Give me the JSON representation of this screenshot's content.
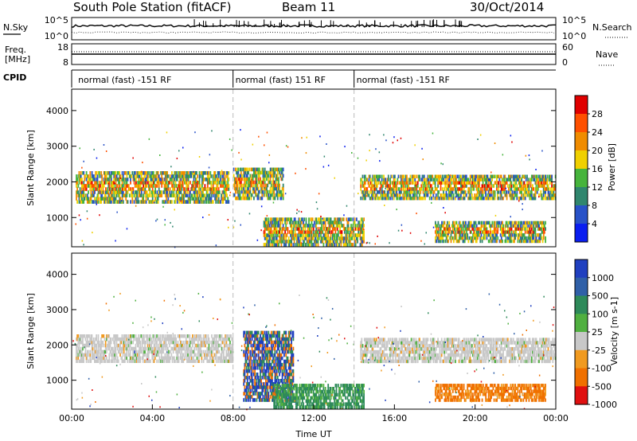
{
  "header": {
    "title": "South Pole Station (fitACF)",
    "beam": "Beam 11",
    "date": "30/Oct/2014"
  },
  "strip_labels": {
    "nsky": "N.Sky",
    "nsearch": "N.Search",
    "freq": "Freq.",
    "freq_unit": "[MHz]",
    "nave": "Nave",
    "cpid": "CPID",
    "nsky_ticks": [
      "10^5",
      "10^0"
    ],
    "nsearch_ticks": [
      "10^5",
      "10^0"
    ],
    "freq_ticks": [
      "18",
      "8"
    ],
    "nave_ticks": [
      "60",
      "0"
    ]
  },
  "cpid_segments": [
    {
      "start": 0.2,
      "end": 8.0,
      "label": "normal (fast) -151 RF"
    },
    {
      "start": 8.0,
      "end": 14.0,
      "label": "normal (fast) 151 RF"
    },
    {
      "start": 14.0,
      "end": 24.0,
      "label": "normal (fast) -151 RF"
    }
  ],
  "chart_data": [
    {
      "type": "heatmap",
      "name": "power",
      "ylabel": "Slant Range [km]",
      "ylim": [
        180,
        4600
      ],
      "yticks": [
        "1000",
        "2000",
        "3000",
        "4000"
      ],
      "yticks_values": [
        1000,
        2000,
        3000,
        4000
      ],
      "xlim": [
        0,
        24
      ],
      "colorbar": {
        "label": "Power [dB]",
        "ticks": [
          "4",
          "8",
          "12",
          "16",
          "20",
          "24",
          "28"
        ],
        "colors": [
          "#0a1ef0",
          "#2852c8",
          "#30866e",
          "#46b43c",
          "#f0d000",
          "#f08c00",
          "#ff5000",
          "#e00000"
        ]
      },
      "bands": [
        {
          "range_km": [
            1400,
            2300
          ],
          "hours": [
            0.2,
            7.8
          ],
          "level": "mixed 4-28 dB"
        },
        {
          "range_km": [
            1500,
            2400
          ],
          "hours": [
            8.0,
            10.5
          ],
          "level": "mixed 4-28 dB"
        },
        {
          "range_km": [
            200,
            1000
          ],
          "hours": [
            9.5,
            14.5
          ],
          "level": "mixed 8-28 dB"
        },
        {
          "range_km": [
            1500,
            2200
          ],
          "hours": [
            14.3,
            24.0
          ],
          "level": "mixed 4-24 dB"
        },
        {
          "range_km": [
            300,
            900
          ],
          "hours": [
            18.0,
            23.5
          ],
          "level": "mixed 4-20 dB"
        }
      ]
    },
    {
      "type": "heatmap",
      "name": "velocity",
      "ylabel": "Slant Range [km]",
      "xlabel": "Time UT",
      "ylim": [
        180,
        4600
      ],
      "yticks": [
        "1000",
        "2000",
        "3000",
        "4000"
      ],
      "yticks_values": [
        1000,
        2000,
        3000,
        4000
      ],
      "xlim": [
        0,
        24
      ],
      "xticks": [
        "00:00",
        "04:00",
        "08:00",
        "12:00",
        "16:00",
        "20:00",
        "00:00"
      ],
      "xticks_values": [
        0,
        4,
        8,
        12,
        16,
        20,
        24
      ],
      "colorbar": {
        "label": "Velocity [m s-1]",
        "ticks": [
          "1000",
          "500",
          "100",
          "25",
          "-25",
          "-100",
          "-500",
          "-1000"
        ],
        "colors": [
          "#2040c0",
          "#3060a8",
          "#2e8a5a",
          "#50b040",
          "#c8c8c8",
          "#f09a20",
          "#f07000",
          "#e01010"
        ]
      },
      "bands": [
        {
          "range_km": [
            1500,
            2300
          ],
          "hours": [
            0.2,
            8.0
          ],
          "level": "about 0 m/s"
        },
        {
          "range_km": [
            400,
            2400
          ],
          "hours": [
            8.5,
            11.0
          ],
          "level": "100-1000 m/s"
        },
        {
          "range_km": [
            200,
            900
          ],
          "hours": [
            10.0,
            14.5
          ],
          "level": "100-500 m/s"
        },
        {
          "range_km": [
            1500,
            2200
          ],
          "hours": [
            14.3,
            24.0
          ],
          "level": "about 0 m/s"
        },
        {
          "range_km": [
            400,
            900
          ],
          "hours": [
            18.0,
            23.5
          ],
          "level": "-100 to -500 m/s"
        }
      ]
    }
  ]
}
